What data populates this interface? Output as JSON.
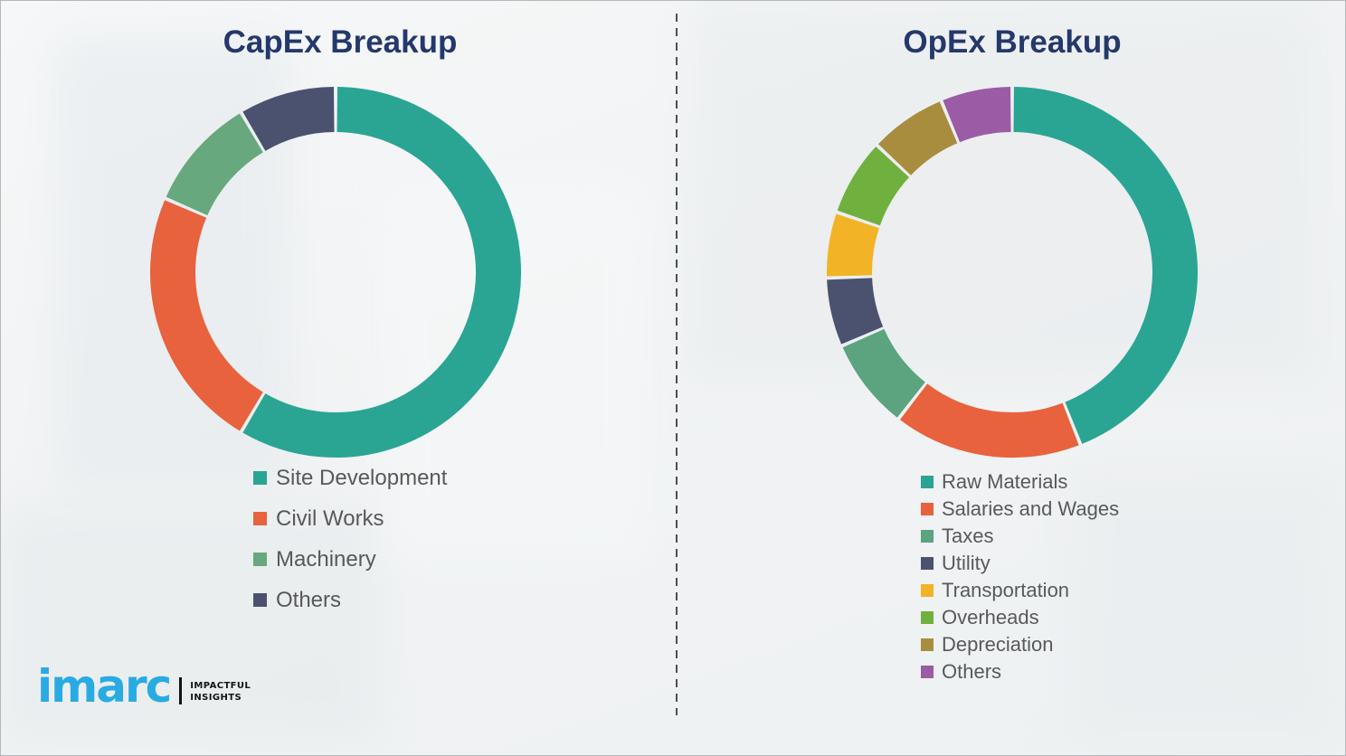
{
  "page": {
    "background_color": "#f1f3f4",
    "divider_color": "#4f4f4f",
    "title_color": "#24386b",
    "legend_text_color": "#595959"
  },
  "chart_data": [
    {
      "type": "pie",
      "subtype": "donut",
      "title": "CapEx Breakup",
      "direction": "clockwise",
      "start_angle_deg": 0,
      "inner_radius_ratio": 0.76,
      "legend_position": "bottom-left",
      "segments": [
        {
          "label": "Site Development",
          "value": 58.5,
          "color": "#2aa593"
        },
        {
          "label": "Civil Works",
          "value": 23.0,
          "color": "#e8623d"
        },
        {
          "label": "Machinery",
          "value": 10.0,
          "color": "#67a87f"
        },
        {
          "label": "Others",
          "value": 8.5,
          "color": "#4a5270"
        }
      ]
    },
    {
      "type": "pie",
      "subtype": "donut",
      "title": "OpEx Breakup",
      "direction": "clockwise",
      "start_angle_deg": 0,
      "inner_radius_ratio": 0.76,
      "legend_position": "bottom-left",
      "segments": [
        {
          "label": "Raw Materials",
          "value": 44.0,
          "color": "#2aa593"
        },
        {
          "label": "Salaries and Wages",
          "value": 16.5,
          "color": "#e8623d"
        },
        {
          "label": "Taxes",
          "value": 8.0,
          "color": "#5ba47f"
        },
        {
          "label": "Utility",
          "value": 6.0,
          "color": "#4a5270"
        },
        {
          "label": "Transportation",
          "value": 5.75,
          "color": "#f2b327"
        },
        {
          "label": "Overheads",
          "value": 6.75,
          "color": "#70b03e"
        },
        {
          "label": "Depreciation",
          "value": 6.75,
          "color": "#a98d3f"
        },
        {
          "label": "Others",
          "value": 6.25,
          "color": "#9c5ba5"
        }
      ]
    }
  ],
  "logo": {
    "brand": "imarc",
    "brand_color": "#29abe2",
    "tagline_line1": "IMPACTFUL",
    "tagline_line2": "INSIGHTS",
    "tagline_color": "#141414"
  }
}
